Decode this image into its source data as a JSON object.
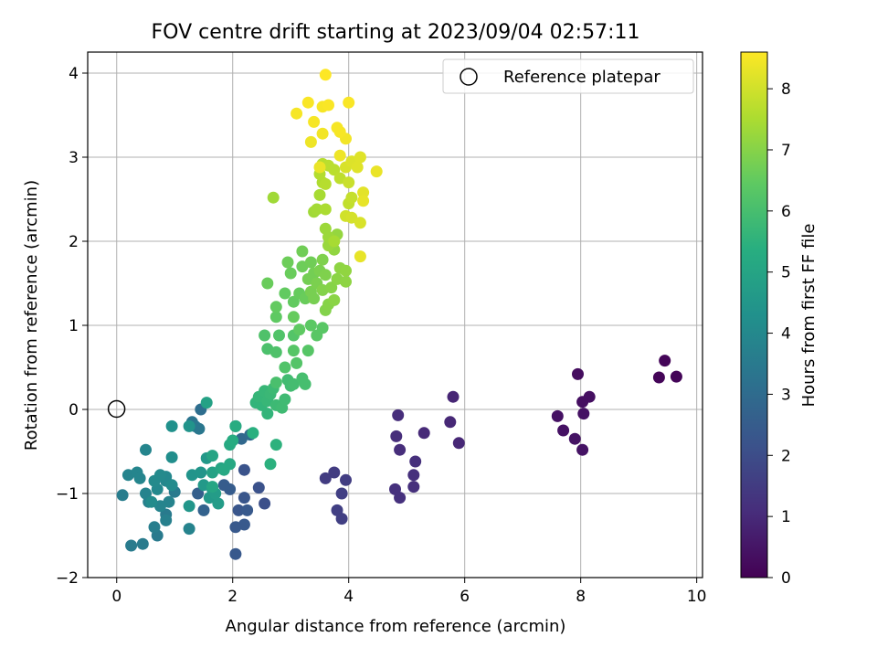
{
  "chart_data": {
    "type": "scatter",
    "title": "FOV centre drift starting at 2023/09/04 02:57:11",
    "xlabel": "Angular distance from reference (arcmin)",
    "ylabel": "Rotation from reference (arcmin)",
    "xlim": [
      -0.5,
      10.1
    ],
    "ylim": [
      -2.0,
      4.25
    ],
    "xticks": [
      "0",
      "2",
      "4",
      "6",
      "8",
      "10"
    ],
    "yticks": [
      "−2",
      "−1",
      "0",
      "1",
      "2",
      "3",
      "4"
    ],
    "grid": true,
    "legend": {
      "placement": "top-right",
      "entries": [
        "Reference platepar"
      ]
    },
    "reference_point": {
      "x": 0,
      "y": 0,
      "label": "Reference platepar"
    },
    "colorbar": {
      "label": "Hours from first FF file",
      "range": [
        0,
        8.6
      ],
      "ticks": [
        "0",
        "1",
        "2",
        "3",
        "4",
        "5",
        "6",
        "7",
        "8"
      ],
      "colormap": "viridis"
    },
    "points": [
      [
        9.45,
        0.58,
        0.1
      ],
      [
        9.35,
        0.38,
        0.1
      ],
      [
        9.65,
        0.39,
        0.1
      ],
      [
        7.95,
        0.42,
        0.3
      ],
      [
        8.15,
        0.15,
        0.35
      ],
      [
        8.03,
        0.09,
        0.35
      ],
      [
        8.05,
        -0.05,
        0.4
      ],
      [
        7.6,
        -0.08,
        0.4
      ],
      [
        7.7,
        -0.25,
        0.4
      ],
      [
        7.9,
        -0.35,
        0.45
      ],
      [
        8.03,
        -0.48,
        0.45
      ],
      [
        5.8,
        0.15,
        0.9
      ],
      [
        5.75,
        -0.15,
        0.95
      ],
      [
        5.9,
        -0.4,
        0.95
      ],
      [
        5.3,
        -0.28,
        1.0
      ],
      [
        4.85,
        -0.07,
        1.1
      ],
      [
        4.82,
        -0.32,
        1.1
      ],
      [
        4.88,
        -0.48,
        1.1
      ],
      [
        5.15,
        -0.62,
        1.15
      ],
      [
        5.12,
        -0.78,
        1.15
      ],
      [
        5.12,
        -0.92,
        1.15
      ],
      [
        4.8,
        -0.95,
        1.2
      ],
      [
        4.88,
        -1.05,
        1.2
      ],
      [
        3.75,
        -0.75,
        1.5
      ],
      [
        3.6,
        -0.82,
        1.5
      ],
      [
        3.95,
        -0.84,
        1.55
      ],
      [
        3.88,
        -1.0,
        1.6
      ],
      [
        3.8,
        -1.2,
        1.6
      ],
      [
        3.88,
        -1.3,
        1.6
      ],
      [
        2.55,
        -1.12,
        2.1
      ],
      [
        2.45,
        -0.93,
        2.15
      ],
      [
        2.2,
        -0.72,
        2.2
      ],
      [
        2.1,
        -1.2,
        2.3
      ],
      [
        2.2,
        -1.05,
        2.3
      ],
      [
        2.25,
        -1.2,
        2.4
      ],
      [
        2.2,
        -1.37,
        2.4
      ],
      [
        2.05,
        -1.4,
        2.4
      ],
      [
        2.05,
        -1.72,
        2.4
      ],
      [
        1.95,
        -0.95,
        2.5
      ],
      [
        1.85,
        -0.9,
        2.5
      ],
      [
        1.4,
        -1.0,
        2.6
      ],
      [
        1.5,
        -1.2,
        2.7
      ],
      [
        2.15,
        -0.35,
        2.9
      ],
      [
        2.3,
        -0.3,
        3.0
      ],
      [
        2.05,
        -0.2,
        3.0
      ],
      [
        1.45,
        0.0,
        3.1
      ],
      [
        1.3,
        -0.15,
        3.3
      ],
      [
        1.35,
        -0.2,
        3.4
      ],
      [
        1.42,
        -0.23,
        3.4
      ],
      [
        1.0,
        -0.98,
        3.5
      ],
      [
        0.85,
        -1.25,
        3.5
      ],
      [
        0.7,
        -1.5,
        3.5
      ],
      [
        0.25,
        -1.62,
        3.55
      ],
      [
        0.45,
        -1.6,
        3.55
      ],
      [
        0.1,
        -1.02,
        3.6
      ],
      [
        0.65,
        -1.4,
        3.65
      ],
      [
        0.85,
        -1.32,
        3.7
      ],
      [
        0.55,
        -1.1,
        3.7
      ],
      [
        0.5,
        -1.0,
        3.8
      ],
      [
        1.25,
        -1.42,
        3.8
      ],
      [
        0.9,
        -1.1,
        3.8
      ],
      [
        0.75,
        -1.15,
        3.85
      ],
      [
        0.2,
        -0.78,
        3.85
      ],
      [
        0.35,
        -0.75,
        3.9
      ],
      [
        0.4,
        -0.82,
        3.9
      ],
      [
        0.5,
        -0.48,
        3.9
      ],
      [
        0.85,
        -0.85,
        3.95
      ],
      [
        0.7,
        -0.95,
        4.0
      ],
      [
        0.85,
        -0.8,
        4.0
      ],
      [
        0.75,
        -0.78,
        4.05
      ],
      [
        0.65,
        -0.85,
        4.05
      ],
      [
        0.6,
        -1.1,
        4.1
      ],
      [
        0.95,
        -0.9,
        4.1
      ],
      [
        0.95,
        -0.57,
        4.2
      ],
      [
        0.95,
        -0.2,
        4.3
      ],
      [
        1.25,
        -0.2,
        4.4
      ],
      [
        1.3,
        -0.78,
        4.4
      ],
      [
        1.45,
        -0.75,
        4.45
      ],
      [
        1.25,
        -1.15,
        4.5
      ],
      [
        1.55,
        -0.58,
        4.55
      ],
      [
        1.5,
        -0.9,
        4.6
      ],
      [
        1.6,
        -1.05,
        4.6
      ],
      [
        1.65,
        -0.95,
        4.65
      ],
      [
        1.75,
        -1.12,
        4.7
      ],
      [
        1.7,
        -1.0,
        4.7
      ],
      [
        1.55,
        0.08,
        4.9
      ],
      [
        1.65,
        -0.75,
        4.9
      ],
      [
        1.65,
        -0.55,
        5.0
      ],
      [
        1.65,
        -0.92,
        5.05
      ],
      [
        1.8,
        -0.7,
        5.05
      ],
      [
        1.85,
        -0.72,
        5.15
      ],
      [
        1.95,
        -0.65,
        5.15
      ],
      [
        1.95,
        -0.42,
        5.2
      ],
      [
        2.0,
        -0.37,
        5.25
      ],
      [
        2.05,
        -0.2,
        5.3
      ],
      [
        2.35,
        -0.28,
        5.4
      ],
      [
        2.65,
        -0.65,
        5.45
      ],
      [
        2.75,
        -0.42,
        5.5
      ],
      [
        2.6,
        -0.05,
        5.6
      ],
      [
        2.4,
        0.08,
        5.6
      ],
      [
        2.5,
        0.05,
        5.6
      ],
      [
        2.45,
        0.15,
        5.65
      ],
      [
        2.55,
        0.22,
        5.7
      ],
      [
        2.6,
        0.1,
        5.7
      ],
      [
        2.65,
        0.18,
        5.75
      ],
      [
        2.7,
        0.25,
        5.8
      ],
      [
        2.75,
        0.05,
        5.8
      ],
      [
        2.85,
        0.02,
        5.85
      ],
      [
        2.9,
        0.12,
        5.85
      ],
      [
        2.95,
        0.35,
        5.9
      ],
      [
        3.0,
        0.28,
        5.9
      ],
      [
        3.05,
        0.3,
        5.95
      ],
      [
        3.2,
        0.37,
        6.0
      ],
      [
        3.25,
        0.3,
        6.0
      ],
      [
        2.75,
        0.32,
        6.05
      ],
      [
        2.6,
        0.72,
        6.1
      ],
      [
        2.75,
        0.68,
        6.15
      ],
      [
        2.55,
        0.88,
        6.15
      ],
      [
        2.8,
        0.88,
        6.2
      ],
      [
        2.9,
        0.5,
        6.2
      ],
      [
        3.05,
        0.88,
        6.25
      ],
      [
        3.1,
        0.55,
        6.25
      ],
      [
        3.05,
        0.7,
        6.3
      ],
      [
        3.3,
        0.7,
        6.3
      ],
      [
        3.45,
        0.88,
        6.35
      ],
      [
        3.55,
        0.97,
        6.35
      ],
      [
        3.35,
        1.0,
        6.4
      ],
      [
        3.15,
        0.95,
        6.45
      ],
      [
        2.75,
        1.1,
        6.45
      ],
      [
        2.75,
        1.22,
        6.5
      ],
      [
        2.9,
        1.38,
        6.5
      ],
      [
        3.05,
        1.28,
        6.5
      ],
      [
        3.05,
        1.1,
        6.55
      ],
      [
        3.15,
        1.38,
        6.55
      ],
      [
        3.25,
        1.32,
        6.6
      ],
      [
        2.6,
        1.5,
        6.6
      ],
      [
        3.0,
        1.62,
        6.6
      ],
      [
        2.95,
        1.75,
        6.65
      ],
      [
        3.2,
        1.7,
        6.65
      ],
      [
        3.2,
        1.88,
        6.7
      ],
      [
        3.35,
        1.75,
        6.7
      ],
      [
        3.4,
        1.62,
        6.75
      ],
      [
        3.3,
        1.55,
        6.75
      ],
      [
        3.35,
        1.4,
        6.8
      ],
      [
        3.4,
        1.32,
        6.8
      ],
      [
        3.45,
        1.5,
        6.85
      ],
      [
        3.5,
        1.65,
        6.85
      ],
      [
        3.55,
        1.78,
        6.9
      ],
      [
        3.6,
        1.6,
        6.9
      ],
      [
        3.55,
        1.42,
        6.95
      ],
      [
        3.6,
        1.18,
        6.95
      ],
      [
        3.65,
        1.25,
        7.0
      ],
      [
        3.7,
        1.45,
        7.0
      ],
      [
        3.75,
        1.3,
        7.05
      ],
      [
        3.8,
        1.55,
        7.05
      ],
      [
        3.85,
        1.68,
        7.1
      ],
      [
        3.95,
        1.52,
        7.1
      ],
      [
        3.95,
        1.65,
        7.15
      ],
      [
        3.75,
        1.9,
        7.15
      ],
      [
        3.8,
        2.08,
        7.2
      ],
      [
        3.65,
        1.95,
        7.25
      ],
      [
        3.6,
        2.15,
        7.3
      ],
      [
        3.65,
        2.05,
        7.3
      ],
      [
        2.7,
        2.52,
        7.35
      ],
      [
        3.4,
        2.35,
        7.35
      ],
      [
        3.45,
        2.38,
        7.4
      ],
      [
        3.5,
        2.55,
        7.45
      ],
      [
        3.75,
        2.0,
        7.45
      ],
      [
        3.6,
        2.38,
        7.5
      ],
      [
        3.55,
        2.7,
        7.55
      ],
      [
        3.5,
        2.8,
        7.6
      ],
      [
        3.55,
        2.92,
        7.65
      ],
      [
        3.6,
        2.68,
        7.65
      ],
      [
        3.65,
        2.9,
        7.7
      ],
      [
        3.75,
        2.85,
        7.7
      ],
      [
        3.85,
        2.75,
        7.75
      ],
      [
        4.0,
        2.45,
        7.8
      ],
      [
        4.05,
        2.52,
        7.85
      ],
      [
        4.0,
        2.7,
        7.9
      ],
      [
        3.95,
        2.3,
        8.0
      ],
      [
        4.05,
        2.28,
        8.05
      ],
      [
        4.2,
        2.22,
        8.1
      ],
      [
        3.95,
        2.88,
        8.1
      ],
      [
        4.05,
        2.95,
        8.15
      ],
      [
        4.15,
        2.88,
        8.2
      ],
      [
        4.2,
        3.0,
        8.2
      ],
      [
        4.25,
        2.58,
        8.25
      ],
      [
        4.25,
        2.48,
        8.3
      ],
      [
        4.2,
        1.82,
        8.3
      ],
      [
        4.48,
        2.83,
        8.35
      ],
      [
        3.5,
        2.88,
        8.35
      ],
      [
        3.85,
        3.02,
        8.4
      ],
      [
        3.95,
        3.22,
        8.45
      ],
      [
        3.85,
        3.3,
        8.5
      ],
      [
        3.8,
        3.35,
        8.5
      ],
      [
        3.4,
        3.42,
        8.5
      ],
      [
        3.55,
        3.28,
        8.45
      ],
      [
        3.35,
        3.18,
        8.4
      ],
      [
        3.1,
        3.52,
        8.5
      ],
      [
        3.55,
        3.6,
        8.5
      ],
      [
        3.65,
        3.62,
        8.55
      ],
      [
        3.3,
        3.65,
        8.55
      ],
      [
        4.0,
        3.65,
        8.55
      ],
      [
        3.6,
        3.98,
        8.6
      ]
    ]
  }
}
